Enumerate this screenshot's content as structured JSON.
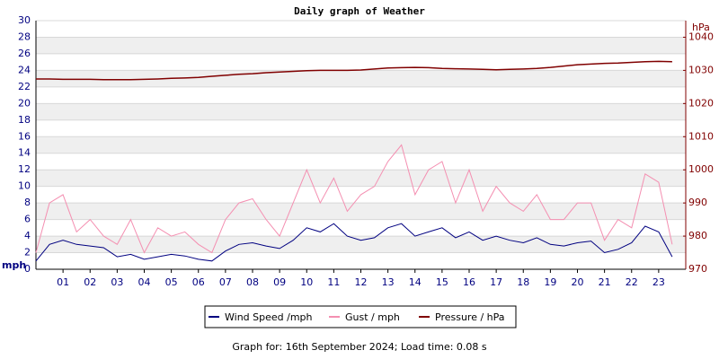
{
  "chart_data": {
    "type": "line",
    "title": "Daily graph of Weather",
    "y_label": "mph",
    "y2_label": "hPa",
    "footer": "Graph for: 16th September 2024; Load time: 0.08 s",
    "x": [
      0,
      0.5,
      1,
      1.5,
      2,
      2.5,
      3,
      3.5,
      4,
      4.5,
      5,
      5.5,
      6,
      6.5,
      7,
      7.5,
      8,
      8.5,
      9,
      9.5,
      10,
      10.5,
      11,
      11.5,
      12,
      12.5,
      13,
      13.5,
      14,
      14.5,
      15,
      15.5,
      16,
      16.5,
      17,
      17.5,
      18,
      18.5,
      19,
      19.5,
      20,
      20.5,
      21,
      21.5,
      22,
      22.5,
      23,
      23.5
    ],
    "series": [
      {
        "name": "Wind Speed /mph",
        "color": "#000080",
        "values": [
          1,
          3,
          3.5,
          3,
          2.8,
          2.6,
          1.5,
          1.8,
          1.2,
          1.5,
          1.8,
          1.6,
          1.2,
          1,
          2.2,
          3,
          3.2,
          2.8,
          2.5,
          3.5,
          5,
          4.5,
          5.5,
          4,
          3.5,
          3.8,
          5,
          5.5,
          4,
          4.5,
          5,
          3.8,
          4.5,
          3.5,
          4,
          3.5,
          3.2,
          3.8,
          3,
          2.8,
          3.2,
          3.4,
          2,
          2.4,
          3.2,
          5.2,
          4.5,
          1.5
        ]
      },
      {
        "name": "Gust / mph",
        "color": "#f48fb1",
        "values": [
          2,
          8,
          9,
          4.5,
          6,
          4,
          3,
          6,
          2,
          5,
          4,
          4.5,
          3,
          2,
          6,
          8,
          8.5,
          6,
          4,
          8,
          12,
          8,
          11,
          7,
          9,
          10,
          13,
          15,
          9,
          12,
          13,
          8,
          12,
          7,
          10,
          8,
          7,
          9,
          6,
          6,
          8,
          8,
          3.5,
          6,
          5,
          11.5,
          10.5,
          3
        ]
      },
      {
        "name": "Pressure / hPa",
        "color": "#800000",
        "axis": "y2",
        "values": [
          1027.4,
          1027.4,
          1027.3,
          1027.3,
          1027.3,
          1027.2,
          1027.2,
          1027.2,
          1027.3,
          1027.4,
          1027.6,
          1027.7,
          1027.9,
          1028.2,
          1028.5,
          1028.8,
          1029,
          1029.3,
          1029.5,
          1029.7,
          1029.9,
          1030,
          1030,
          1030,
          1030.1,
          1030.4,
          1030.7,
          1030.8,
          1030.9,
          1030.8,
          1030.6,
          1030.5,
          1030.4,
          1030.3,
          1030.2,
          1030.3,
          1030.4,
          1030.6,
          1030.9,
          1031.3,
          1031.7,
          1031.9,
          1032.1,
          1032.2,
          1032.4,
          1032.6,
          1032.7,
          1032.6
        ]
      }
    ],
    "xlim": [
      0,
      24
    ],
    "xticks": [
      {
        "value": 1,
        "label": "01"
      },
      {
        "value": 2,
        "label": "02"
      },
      {
        "value": 3,
        "label": "03"
      },
      {
        "value": 4,
        "label": "04"
      },
      {
        "value": 5,
        "label": "05"
      },
      {
        "value": 6,
        "label": "06"
      },
      {
        "value": 7,
        "label": "07"
      },
      {
        "value": 8,
        "label": "08"
      },
      {
        "value": 9,
        "label": "09"
      },
      10,
      11,
      12,
      13,
      14,
      15,
      16,
      17,
      18,
      19,
      20,
      21,
      22,
      23
    ],
    "ylim": [
      0,
      30
    ],
    "yticks": [
      0,
      2,
      4,
      6,
      8,
      10,
      12,
      14,
      16,
      18,
      20,
      22,
      24,
      26,
      28,
      30
    ],
    "y2lim": [
      970,
      1045
    ],
    "y2ticks": [
      970,
      980,
      990,
      1000,
      1010,
      1020,
      1030,
      1040
    ],
    "grid": true
  }
}
